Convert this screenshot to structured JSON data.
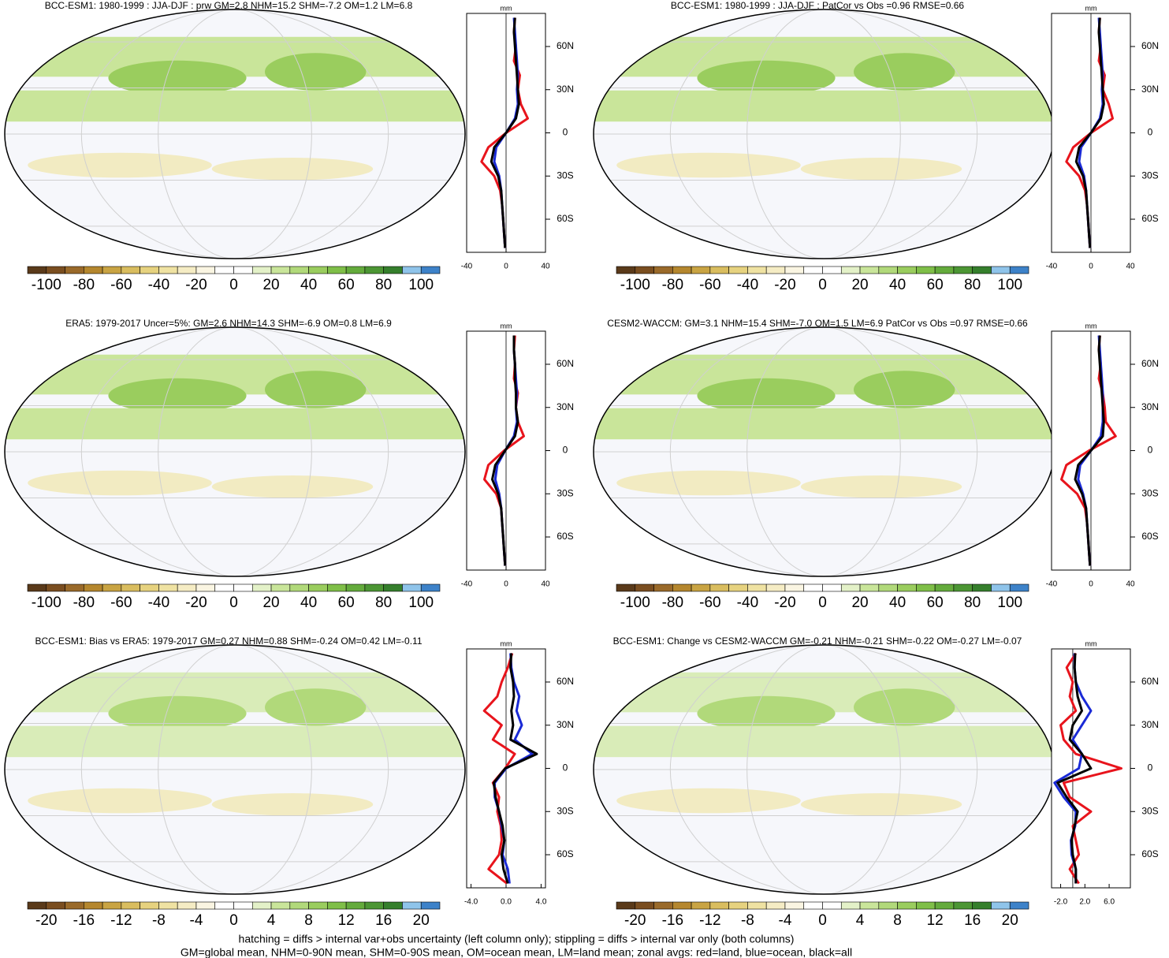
{
  "colorbar_colors": [
    "#5a3a1a",
    "#7a4e20",
    "#9a6a2a",
    "#b5872e",
    "#c9a443",
    "#d9bd5f",
    "#e6d27f",
    "#efe2a2",
    "#f5ecc4",
    "#faf5e2",
    "#ffffff",
    "#ffffff",
    "#e3f1c8",
    "#c9e59a",
    "#b1d97a",
    "#9acd5e",
    "#7fbf48",
    "#64ab3c",
    "#4c9634",
    "#357f2c",
    "#8fc4ea",
    "#3d82c9"
  ],
  "footer": [
    "hatching = diffs > internal var+obs uncertainty (left column only); stippling = diffs > internal var only (both columns)",
    "GM=global mean, NHM=0-90N mean, SHM=0-90S mean, OM=ocean mean, LM=land mean; zonal avgs: red=land, blue=ocean, black=all"
  ],
  "chart_data": [
    {
      "type": "zonal",
      "title": "BCC-ESM1: 1980-1999 : JJA-DJF : prw GM=2.8 NHM=15.2 SHM=-7.2 OM=1.2 LM=6.8",
      "unit": "mm",
      "colorbar_ticks": [
        -100,
        -80,
        -60,
        -40,
        -20,
        0,
        20,
        40,
        60,
        80,
        100
      ],
      "xlim": [
        -40,
        40
      ],
      "xticks": [
        -40,
        0,
        40
      ],
      "ylim": [
        -83,
        83
      ],
      "yticks": [
        {
          "value": 60,
          "label": "60N"
        },
        {
          "value": 30,
          "label": "30N"
        },
        0,
        {
          "value": -30,
          "label": "30S"
        },
        {
          "value": -60,
          "label": "60S"
        }
      ],
      "y": [
        -80,
        -70,
        -60,
        -50,
        -40,
        -30,
        -20,
        -10,
        0,
        10,
        20,
        30,
        40,
        50,
        60,
        70,
        80
      ],
      "series": [
        {
          "color": "#e8141c",
          "values": [
            -1,
            -2,
            -3,
            -4,
            -6,
            -12,
            -25,
            -18,
            0,
            22,
            15,
            12,
            14,
            8,
            10,
            8,
            9
          ]
        },
        {
          "color": "#1a2ad6",
          "values": [
            -1,
            -2,
            -3,
            -4,
            -5,
            -7,
            -12,
            -10,
            0,
            9,
            12,
            11,
            12,
            11,
            10,
            9,
            8
          ]
        },
        {
          "color": "#000000",
          "values": [
            -1,
            -2,
            -3,
            -4,
            -5,
            -8,
            -15,
            -12,
            0,
            10,
            13,
            12,
            11,
            10,
            9,
            8,
            9
          ]
        }
      ]
    },
    {
      "type": "zonal",
      "title": "BCC-ESM1: 1980-1999 : JJA-DJF : PatCor vs Obs =0.96 RMSE=0.66",
      "unit": "mm",
      "colorbar_ticks": [
        -100,
        -80,
        -60,
        -40,
        -20,
        0,
        20,
        40,
        60,
        80,
        100
      ],
      "xlim": [
        -40,
        40
      ],
      "xticks": [
        -40,
        0,
        40
      ],
      "ylim": [
        -83,
        83
      ],
      "yticks": [
        {
          "value": 60,
          "label": "60N"
        },
        {
          "value": 30,
          "label": "30N"
        },
        0,
        {
          "value": -30,
          "label": "30S"
        },
        {
          "value": -60,
          "label": "60S"
        }
      ],
      "y": [
        -80,
        -70,
        -60,
        -50,
        -40,
        -30,
        -20,
        -10,
        0,
        10,
        20,
        30,
        40,
        50,
        60,
        70,
        80
      ],
      "series": [
        {
          "color": "#e8141c",
          "values": [
            -1,
            -2,
            -3,
            -4,
            -6,
            -12,
            -25,
            -18,
            0,
            22,
            18,
            12,
            14,
            8,
            10,
            8,
            9
          ]
        },
        {
          "color": "#1a2ad6",
          "values": [
            -1,
            -2,
            -3,
            -4,
            -5,
            -7,
            -12,
            -10,
            0,
            9,
            12,
            11,
            12,
            11,
            10,
            9,
            8
          ]
        },
        {
          "color": "#000000",
          "values": [
            -1,
            -2,
            -3,
            -4,
            -5,
            -8,
            -15,
            -12,
            0,
            10,
            13,
            12,
            11,
            10,
            9,
            8,
            9
          ]
        }
      ]
    },
    {
      "type": "zonal",
      "title": "ERA5: 1979-2017 Uncer=5%: GM=2.6 NHM=14.3 SHM=-6.9 OM=0.8 LM=6.9",
      "unit": "mm",
      "colorbar_ticks": [
        -100,
        -80,
        -60,
        -40,
        -20,
        0,
        20,
        40,
        60,
        80,
        100
      ],
      "xlim": [
        -40,
        40
      ],
      "xticks": [
        -40,
        0,
        40
      ],
      "ylim": [
        -83,
        83
      ],
      "yticks": [
        {
          "value": 60,
          "label": "60N"
        },
        {
          "value": 30,
          "label": "30N"
        },
        0,
        {
          "value": -30,
          "label": "30S"
        },
        {
          "value": -60,
          "label": "60S"
        }
      ],
      "y": [
        -80,
        -70,
        -60,
        -50,
        -40,
        -30,
        -20,
        -10,
        0,
        10,
        20,
        30,
        40,
        50,
        60,
        70,
        80
      ],
      "series": [
        {
          "color": "#e8141c",
          "values": [
            -1,
            -2,
            -3,
            -4,
            -5,
            -10,
            -22,
            -18,
            -2,
            18,
            12,
            10,
            12,
            8,
            9,
            8,
            9
          ]
        },
        {
          "color": "#1a2ad6",
          "values": [
            -1,
            -2,
            -3,
            -4,
            -5,
            -7,
            -11,
            -9,
            -1,
            8,
            11,
            10,
            11,
            10,
            9,
            8,
            8
          ]
        },
        {
          "color": "#000000",
          "values": [
            -1,
            -2,
            -3,
            -4,
            -5,
            -8,
            -14,
            -11,
            -1,
            9,
            12,
            10,
            10,
            9,
            9,
            8,
            8
          ]
        }
      ]
    },
    {
      "type": "zonal",
      "title": "CESM2-WACCM: GM=3.1 NHM=15.4 SHM=-7.0 OM=1.5 LM=6.9 PatCor vs Obs =0.97 RMSE=0.66",
      "unit": "mm",
      "colorbar_ticks": [
        -100,
        -80,
        -60,
        -40,
        -20,
        0,
        20,
        40,
        60,
        80,
        100
      ],
      "xlim": [
        -40,
        40
      ],
      "xticks": [
        -40,
        0,
        40
      ],
      "ylim": [
        -83,
        83
      ],
      "yticks": [
        {
          "value": 60,
          "label": "60N"
        },
        {
          "value": 30,
          "label": "30N"
        },
        0,
        {
          "value": -30,
          "label": "30S"
        },
        {
          "value": -60,
          "label": "60S"
        }
      ],
      "y": [
        -80,
        -70,
        -60,
        -50,
        -40,
        -30,
        -20,
        -10,
        0,
        10,
        20,
        30,
        40,
        50,
        60,
        70,
        80
      ],
      "series": [
        {
          "color": "#e8141c",
          "values": [
            -1,
            -2,
            -3,
            -4,
            -6,
            -14,
            -30,
            -25,
            -2,
            25,
            15,
            14,
            12,
            8,
            10,
            8,
            9
          ]
        },
        {
          "color": "#1a2ad6",
          "values": [
            -1,
            -2,
            -3,
            -4,
            -5,
            -8,
            -13,
            -11,
            0,
            10,
            12,
            12,
            12,
            11,
            10,
            9,
            8
          ]
        },
        {
          "color": "#000000",
          "values": [
            -1,
            -2,
            -3,
            -4,
            -5,
            -9,
            -16,
            -13,
            0,
            12,
            13,
            12,
            11,
            10,
            9,
            8,
            9
          ]
        }
      ]
    },
    {
      "type": "zonal",
      "title": "BCC-ESM1: Bias vs ERA5: 1979-2017 GM=0.27 NHM=0.88 SHM=-0.24 OM=0.42 LM=-0.11",
      "unit": "mm",
      "colorbar_ticks": [
        -20,
        -16,
        -12,
        -8,
        -4,
        0,
        4,
        8,
        12,
        16,
        20
      ],
      "xlim": [
        -4.5,
        4.5
      ],
      "xticks": [
        {
          "value": -4,
          "label": "-4.0"
        },
        {
          "value": 0,
          "label": "0.0"
        },
        {
          "value": 4,
          "label": "4.0"
        }
      ],
      "ylim": [
        -83,
        83
      ],
      "yticks": [
        {
          "value": 60,
          "label": "60N"
        },
        {
          "value": 30,
          "label": "30N"
        },
        0,
        {
          "value": -30,
          "label": "30S"
        },
        {
          "value": -60,
          "label": "60S"
        }
      ],
      "y": [
        -80,
        -70,
        -60,
        -50,
        -40,
        -30,
        -20,
        -10,
        0,
        10,
        20,
        30,
        40,
        50,
        60,
        70,
        80
      ],
      "series": [
        {
          "color": "#e8141c",
          "values": [
            0.1,
            -2.0,
            -0.8,
            -0.5,
            -0.6,
            -1.0,
            -0.8,
            -1.5,
            -0.1,
            1.0,
            -1.5,
            -0.5,
            -2.5,
            -1.0,
            -0.5,
            0.2,
            0.7
          ]
        },
        {
          "color": "#1a2ad6",
          "values": [
            0.4,
            0.2,
            -0.4,
            -0.2,
            -0.5,
            -0.8,
            -1.3,
            -1.3,
            0.0,
            3.0,
            1.0,
            1.8,
            1.2,
            1.5,
            0.9,
            0.6,
            0.5
          ]
        },
        {
          "color": "#000000",
          "values": [
            0.2,
            -0.3,
            -0.5,
            -0.2,
            -0.4,
            -0.8,
            -1.2,
            -1.4,
            -0.1,
            3.5,
            0.5,
            0.8,
            0.6,
            0.9,
            0.8,
            0.5,
            0.6
          ]
        }
      ]
    },
    {
      "type": "zonal",
      "title": "BCC-ESM1: Change vs CESM2-WACCM GM=-0.21 NHM=-0.21 SHM=-0.22 OM=-0.27 LM=-0.07",
      "unit": "mm",
      "colorbar_ticks": [
        -20,
        -16,
        -12,
        -8,
        -4,
        0,
        4,
        8,
        12,
        16,
        20
      ],
      "xlim": [
        -3.5,
        9.5
      ],
      "xticks": [
        {
          "value": -2,
          "label": "-2.0"
        },
        {
          "value": 2,
          "label": "2.0"
        },
        {
          "value": 6,
          "label": "6.0"
        }
      ],
      "ylim": [
        -83,
        83
      ],
      "yticks": [
        {
          "value": 60,
          "label": "60N"
        },
        {
          "value": 30,
          "label": "30N"
        },
        0,
        {
          "value": -30,
          "label": "30S"
        },
        {
          "value": -60,
          "label": "60S"
        }
      ],
      "y": [
        -80,
        -70,
        -60,
        -50,
        -40,
        -30,
        -20,
        -10,
        0,
        10,
        20,
        30,
        40,
        50,
        60,
        70,
        80
      ],
      "series": [
        {
          "color": "#e8141c",
          "values": [
            1.0,
            -0.5,
            1.0,
            0.5,
            0.0,
            3.0,
            -0.5,
            -1.5,
            8.0,
            0.5,
            -1.5,
            -2.0,
            0.5,
            -0.5,
            0.0,
            -1.0,
            0.5
          ]
        },
        {
          "color": "#1a2ad6",
          "values": [
            0.5,
            0.5,
            -0.2,
            -0.3,
            0.4,
            0.5,
            -1.5,
            -3.0,
            1.0,
            1.5,
            0.0,
            1.5,
            3.0,
            1.5,
            0.5,
            0.3,
            0.3
          ]
        },
        {
          "color": "#000000",
          "values": [
            0.5,
            0.5,
            0.0,
            -0.2,
            0.3,
            0.8,
            -1.0,
            -2.5,
            3.0,
            1.5,
            -0.5,
            0.0,
            1.5,
            0.8,
            0.5,
            0.3,
            0.4
          ]
        }
      ]
    }
  ]
}
